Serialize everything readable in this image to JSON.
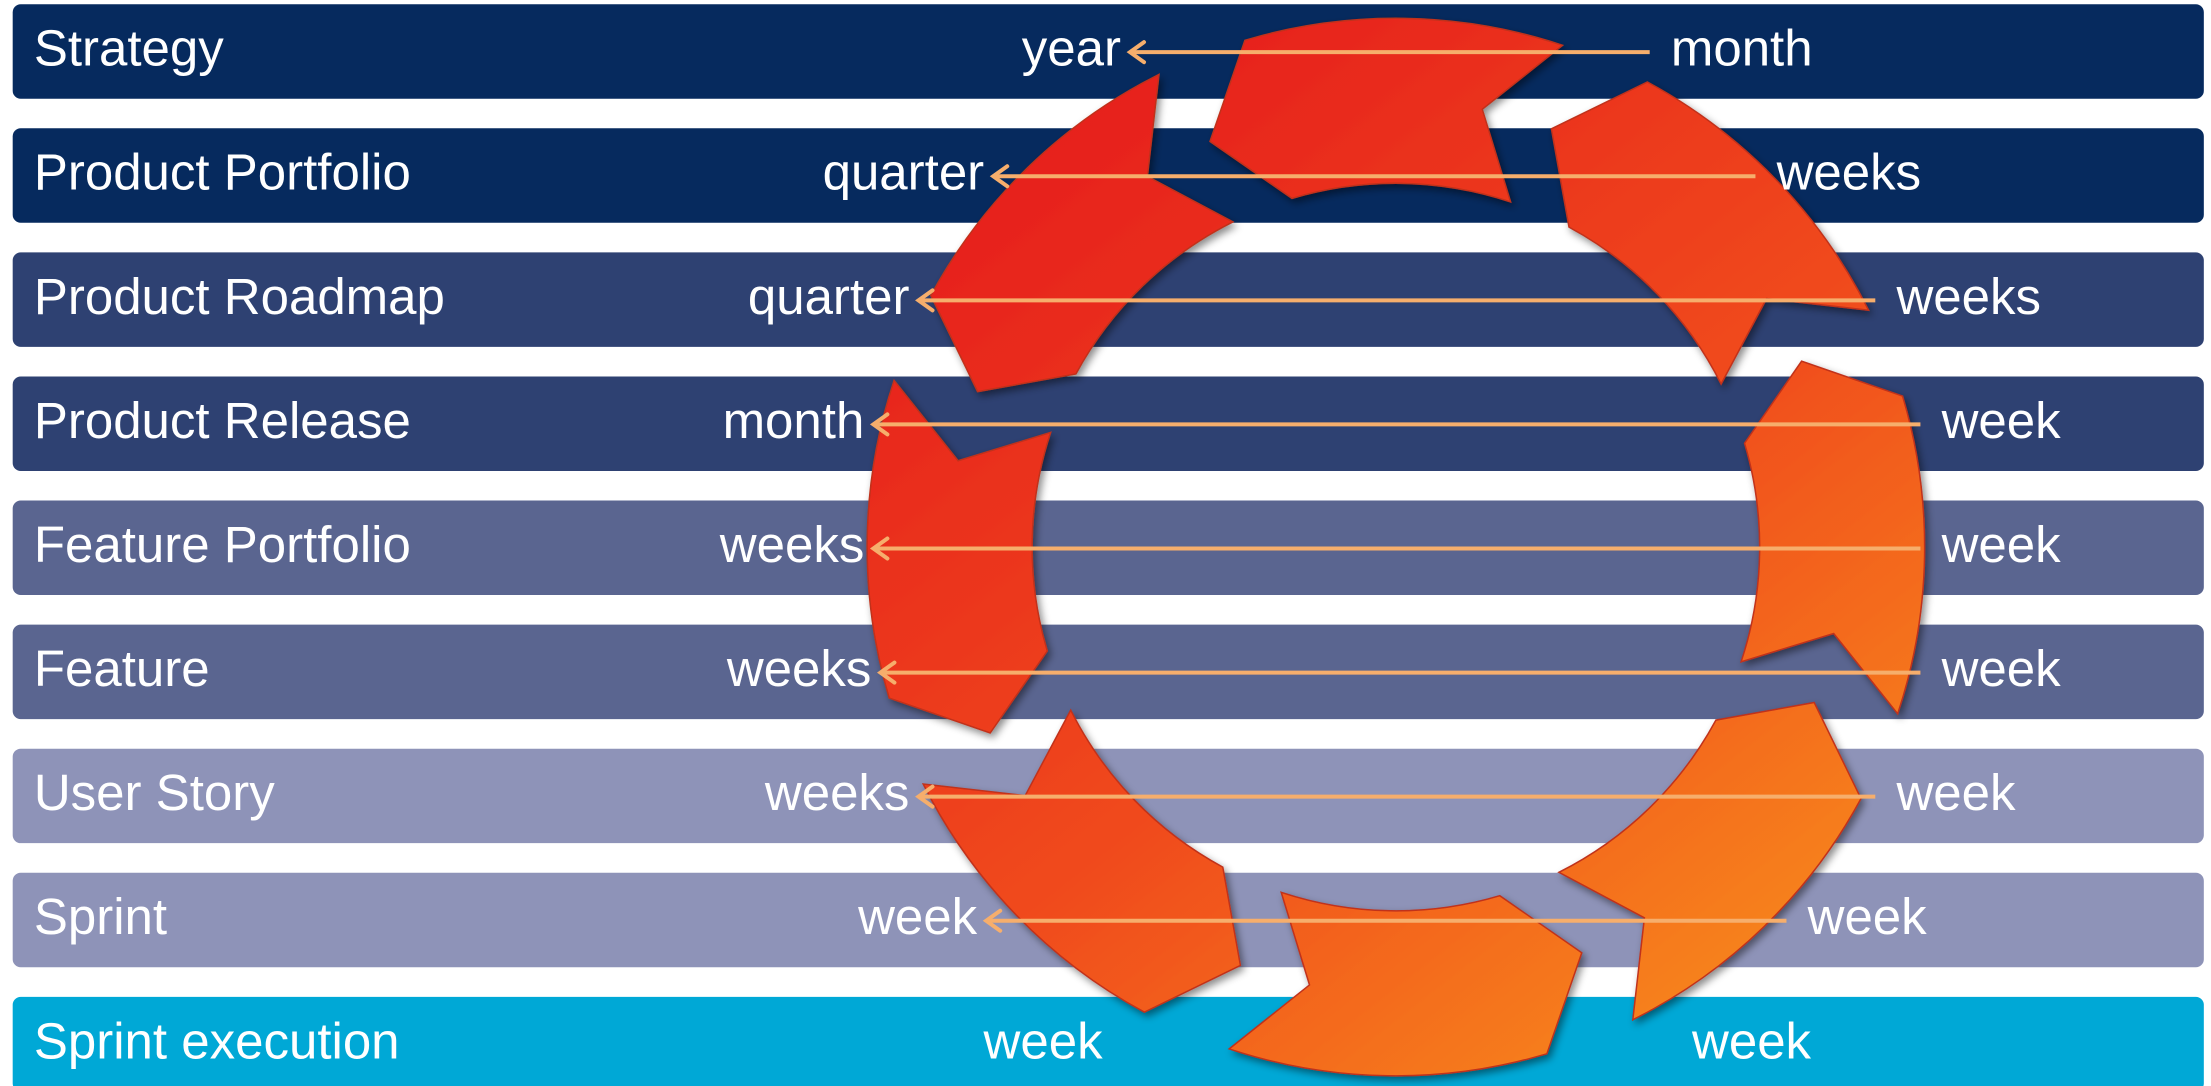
{
  "rows": [
    {
      "label": "Strategy",
      "left": "year",
      "right": "month"
    },
    {
      "label": "Product Portfolio",
      "left": "quarter",
      "right": "weeks"
    },
    {
      "label": "Product Roadmap",
      "left": "quarter",
      "right": "weeks"
    },
    {
      "label": "Product Release",
      "left": "month",
      "right": "week"
    },
    {
      "label": "Feature Portfolio",
      "left": "weeks",
      "right": "week"
    },
    {
      "label": "Feature",
      "left": "weeks",
      "right": "week"
    },
    {
      "label": "User Story",
      "left": "weeks",
      "right": "week"
    },
    {
      "label": "Sprint",
      "left": "week",
      "right": "week"
    },
    {
      "label": "Sprint execution",
      "left": "week",
      "right": "week"
    }
  ]
}
